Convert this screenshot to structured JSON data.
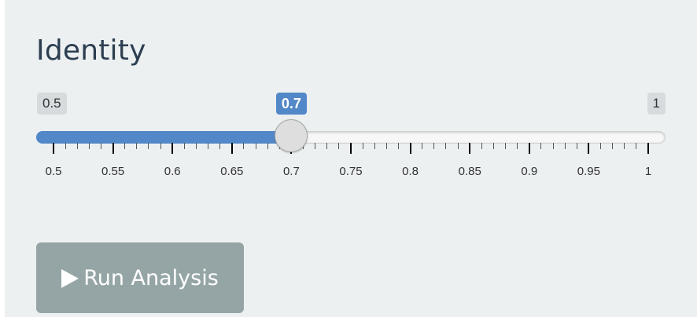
{
  "identity_slider": {
    "label": "Identity",
    "min_label": "0.5",
    "max_label": "1",
    "value_label": "0.7",
    "min": 0.5,
    "max": 1,
    "value": 0.7,
    "step": 0.01,
    "tick_labels": [
      "0.5",
      "0.55",
      "0.6",
      "0.65",
      "0.7",
      "0.75",
      "0.8",
      "0.85",
      "0.9",
      "0.95",
      "1"
    ],
    "accent_color": "#5288c8"
  },
  "run_button": {
    "label": "Run Analysis",
    "icon": "play-icon",
    "color": "#95a5a6"
  }
}
